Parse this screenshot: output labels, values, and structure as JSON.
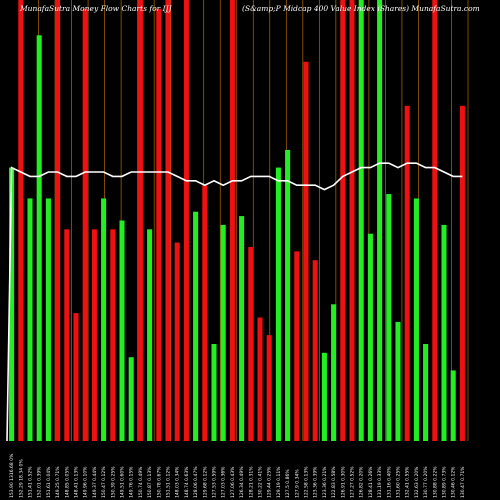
{
  "chart_data": {
    "type": "bar",
    "title_left": "MunafaSutra Money Flow Charts for IJJ",
    "title_right": "(S&amp;P Midcap 400 Value Index iShares) MunafaSutra.com",
    "xlabel": "",
    "ylabel": "",
    "ylim": [
      0,
      100
    ],
    "categories": [
      "153.90 1316.68 0%",
      "152.29 18.34 0%",
      "151.41 0.52%",
      "152.01 0.39%",
      "151.61 0.04%",
      "149.25 0.71%",
      "148.85 0.05%",
      "148.41 0.13%",
      "149.96 0.10%",
      "149.37 0.44%",
      "150.47 0.12%",
      "150.39 0.25%",
      "149.51 0.60%",
      "149.76 0.15%",
      "150.74 0.49%",
      "150.87 0.13%",
      "150.78 0.67%",
      "151.51 0.12%",
      "148.03 0.34%",
      "148.74 0.63%",
      "128.06 0.47%",
      "129.68 0.12%",
      "127.53 0.59%",
      "127.03 0.36%",
      "127.06 0.43%",
      "126.34 0.49%",
      "128.21 0.31%",
      "130.22 0.41%",
      "129.44 0.25%",
      "129.19 0.11%",
      "127.5 0.86%",
      "127.9 0.34%",
      "122.58 0.13%",
      "123.36 0.39%",
      "123.36 0.21%",
      "122.83 0.58%",
      "126.91 0.30%",
      "127.27 0.52%",
      "126.82 0.20%",
      "128.41 0.26%",
      "131.19 0.33%",
      "131.16 0.40%",
      "131.60 0.25%",
      "132.41 0.55%",
      "132.63 0.20%",
      "130.77 0.20%",
      "130.88 0.22%",
      "130.89 0.73%",
      "130.46 0.12%",
      "130.47 0.71%"
    ],
    "values": [
      62,
      100,
      55,
      92,
      55,
      100,
      48,
      29,
      98,
      48,
      55,
      48,
      50,
      19,
      100,
      48,
      98,
      100,
      45,
      100,
      52,
      58,
      22,
      49,
      100,
      51,
      44,
      28,
      24,
      62,
      66,
      43,
      86,
      41,
      20,
      31,
      100,
      100,
      100,
      47,
      100,
      56,
      27,
      76,
      55,
      22,
      100,
      49,
      16,
      76
    ],
    "colors": [
      "green",
      "red",
      "green",
      "green",
      "green",
      "red",
      "red",
      "red",
      "red",
      "red",
      "green",
      "red",
      "green",
      "green",
      "red",
      "green",
      "red",
      "red",
      "red",
      "red",
      "green",
      "red",
      "green",
      "green",
      "red",
      "green",
      "red",
      "red",
      "red",
      "green",
      "green",
      "red",
      "red",
      "red",
      "green",
      "green",
      "red",
      "red",
      "green",
      "green",
      "green",
      "green",
      "green",
      "red",
      "green",
      "green",
      "red",
      "green",
      "green",
      "red"
    ],
    "line_values": [
      62,
      61,
      60,
      60,
      61,
      61,
      60,
      60,
      61,
      61,
      61,
      60,
      60,
      61,
      61,
      61,
      61,
      61,
      60,
      59,
      59,
      58,
      59,
      58,
      59,
      59,
      60,
      60,
      60,
      59,
      59,
      58,
      58,
      58,
      57,
      58,
      60,
      61,
      62,
      62,
      63,
      63,
      62,
      63,
      63,
      62,
      62,
      61,
      60,
      60
    ],
    "vline_count": 28
  }
}
